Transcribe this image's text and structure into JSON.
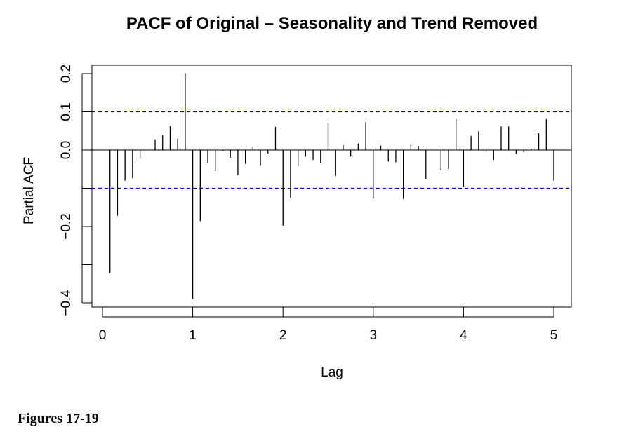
{
  "chart_data": {
    "type": "bar",
    "title": "PACF of Original – Seasonality and Trend Removed",
    "xlabel": "Lag",
    "ylabel": "Partial ACF",
    "xlim": [
      0,
      5.2
    ],
    "ylim": [
      -0.4,
      0.2
    ],
    "xticks": [
      "0",
      "1",
      "2",
      "3",
      "4",
      "5"
    ],
    "yticks": [
      "-0.4",
      "-0.3",
      "-0.2",
      "-0.1",
      "0.0",
      "0.1",
      "0.2"
    ],
    "ytick_labels_shown": {
      "-0.4": "−0.4",
      "-0.2": "−0.2",
      "0.0": "0.0",
      "0.1": "0.1",
      "0.2": "0.2"
    },
    "confidence_bound": 0.1,
    "bound_color": "#0000cc",
    "x": [
      0.0833,
      0.1667,
      0.25,
      0.3333,
      0.4167,
      0.5,
      0.5833,
      0.6667,
      0.75,
      0.8333,
      0.9167,
      1.0,
      1.0833,
      1.1667,
      1.25,
      1.3333,
      1.4167,
      1.5,
      1.5833,
      1.6667,
      1.75,
      1.8333,
      1.9167,
      2.0,
      2.0833,
      2.1667,
      2.25,
      2.3333,
      2.4167,
      2.5,
      2.5833,
      2.6667,
      2.75,
      2.8333,
      2.9167,
      3.0,
      3.0833,
      3.1667,
      3.25,
      3.3333,
      3.4167,
      3.5,
      3.5833,
      3.6667,
      3.75,
      3.8333,
      3.9167,
      4.0,
      4.0833,
      4.1667,
      4.25,
      4.3333,
      4.4167,
      4.5,
      4.5833,
      4.6667,
      4.75,
      4.8333,
      4.9167,
      5.0
    ],
    "values": [
      -0.322,
      -0.172,
      -0.08,
      -0.074,
      -0.023,
      0.0,
      0.028,
      0.039,
      0.063,
      0.03,
      0.201,
      -0.39,
      -0.186,
      -0.033,
      -0.055,
      -0.002,
      -0.02,
      -0.066,
      -0.036,
      0.009,
      -0.041,
      -0.009,
      0.061,
      -0.198,
      -0.125,
      -0.042,
      -0.017,
      -0.026,
      -0.033,
      0.071,
      -0.068,
      0.013,
      -0.017,
      0.017,
      0.073,
      -0.127,
      0.012,
      -0.03,
      -0.032,
      -0.128,
      0.014,
      0.011,
      -0.077,
      0.0,
      -0.053,
      -0.049,
      0.081,
      -0.097,
      0.037,
      0.049,
      -0.004,
      -0.026,
      0.062,
      0.062,
      -0.01,
      -0.005,
      0.004,
      0.044,
      0.081,
      -0.08
    ]
  },
  "caption": "Figures 17-19"
}
